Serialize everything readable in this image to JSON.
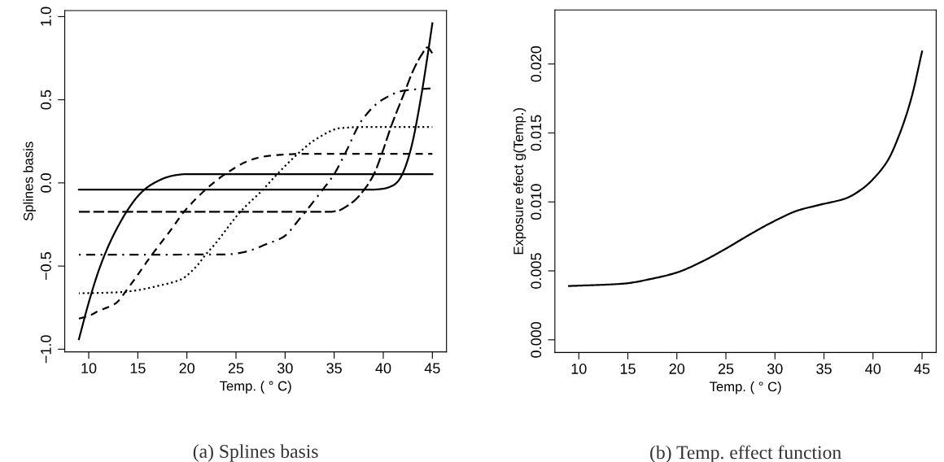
{
  "chart_data": [
    {
      "type": "line",
      "title": "(a) Splines basis",
      "xlabel": "Temp. ( ° C)",
      "ylabel": "Splines basis",
      "xlim": [
        7.56,
        46.44
      ],
      "ylim": [
        -1.016,
        1.036
      ],
      "xticks": [
        10,
        15,
        20,
        25,
        30,
        35,
        40,
        45
      ],
      "yticks": [
        {
          "value": -1.0,
          "label": "−1.0"
        },
        {
          "value": -0.5,
          "label": "−0.5"
        },
        {
          "value": 0.0,
          "label": "0.0"
        },
        {
          "value": 0.5,
          "label": "0.5"
        },
        {
          "value": 1.0,
          "label": "1.0"
        }
      ],
      "grid": false,
      "marker": "none",
      "series": [
        {
          "color": "#000000",
          "line_style": "solid",
          "x": [
            9,
            10,
            11,
            12,
            13,
            14,
            15,
            16,
            17,
            18,
            19,
            20,
            45
          ],
          "values": [
            -0.94,
            -0.72,
            -0.53,
            -0.38,
            -0.26,
            -0.16,
            -0.08,
            -0.025,
            0.01,
            0.035,
            0.048,
            0.053,
            0.053
          ]
        },
        {
          "color": "#000000",
          "line_style": "dashed",
          "x": [
            9,
            10,
            11,
            12.7,
            14.2,
            16.4,
            18.5,
            19.7,
            22.2,
            23.9,
            26.5,
            28,
            30.1,
            32,
            45
          ],
          "values": [
            -0.816,
            -0.8,
            -0.77,
            -0.726,
            -0.617,
            -0.435,
            -0.272,
            -0.174,
            -0.025,
            0.053,
            0.138,
            0.16,
            0.171,
            0.175,
            0.175
          ]
        },
        {
          "color": "#000000",
          "line_style": "dotted",
          "x": [
            9,
            13,
            15,
            17,
            19.4,
            21,
            21.9,
            22.8,
            25.5,
            27.7,
            29.2,
            31.3,
            33.2,
            35.6,
            37.8,
            45
          ],
          "values": [
            -0.664,
            -0.658,
            -0.645,
            -0.62,
            -0.58,
            -0.5,
            -0.432,
            -0.372,
            -0.17,
            -0.043,
            0.053,
            0.175,
            0.265,
            0.329,
            0.336,
            0.336
          ]
        },
        {
          "color": "#000000",
          "line_style": "dashdot",
          "x": [
            9,
            24,
            25.5,
            27,
            28,
            29.8,
            31.6,
            33.8,
            35,
            36.1,
            37.8,
            39.9,
            42.2,
            45
          ],
          "values": [
            -0.432,
            -0.43,
            -0.42,
            -0.395,
            -0.37,
            -0.326,
            -0.207,
            -0.043,
            0.053,
            0.175,
            0.375,
            0.5,
            0.556,
            0.569
          ]
        },
        {
          "color": "#000000",
          "line_style": "longdash",
          "x": [
            9,
            34.5,
            35.5,
            36.2,
            37,
            37.8,
            39,
            40,
            40.8,
            42.2,
            43,
            43.9,
            44.5,
            45
          ],
          "values": [
            -0.174,
            -0.174,
            -0.165,
            -0.143,
            -0.11,
            -0.06,
            0.047,
            0.2,
            0.34,
            0.55,
            0.67,
            0.77,
            0.815,
            0.78
          ]
        },
        {
          "color": "#000000",
          "line_style": "solid",
          "x": [
            9,
            39,
            40,
            41,
            41.5,
            42,
            42.5,
            43,
            43.5,
            44,
            44.5,
            45
          ],
          "values": [
            -0.04,
            -0.04,
            -0.035,
            -0.015,
            0.01,
            0.06,
            0.14,
            0.25,
            0.4,
            0.57,
            0.76,
            0.96
          ]
        }
      ]
    },
    {
      "type": "line",
      "title": "(b) Temp. effect function",
      "xlabel": "Temp. ( ° C)",
      "ylabel": "Exposure efect g(Temp.)",
      "xlim": [
        7.56,
        46.44
      ],
      "ylim": [
        -0.00092,
        0.02392
      ],
      "xticks": [
        10,
        15,
        20,
        25,
        30,
        35,
        40,
        45
      ],
      "yticks": [
        {
          "value": 0.0,
          "label": "0.000"
        },
        {
          "value": 0.005,
          "label": "0.005"
        },
        {
          "value": 0.01,
          "label": "0.010"
        },
        {
          "value": 0.015,
          "label": "0.015"
        },
        {
          "value": 0.02,
          "label": "0.020"
        }
      ],
      "grid": false,
      "marker": "none",
      "series": [
        {
          "color": "#000000",
          "line_style": "solid",
          "x": [
            9,
            14.5,
            17.6,
            20,
            22.5,
            24.9,
            27.4,
            29.8,
            32.3,
            34.7,
            37.2,
            39,
            40.2,
            41.5,
            42.7,
            43.9,
            45
          ],
          "values": [
            0.0039,
            0.00407,
            0.00445,
            0.00488,
            0.00565,
            0.00657,
            0.00762,
            0.00856,
            0.00937,
            0.00981,
            0.01025,
            0.011,
            0.0118,
            0.013,
            0.0149,
            0.0175,
            0.0209
          ]
        }
      ]
    }
  ]
}
